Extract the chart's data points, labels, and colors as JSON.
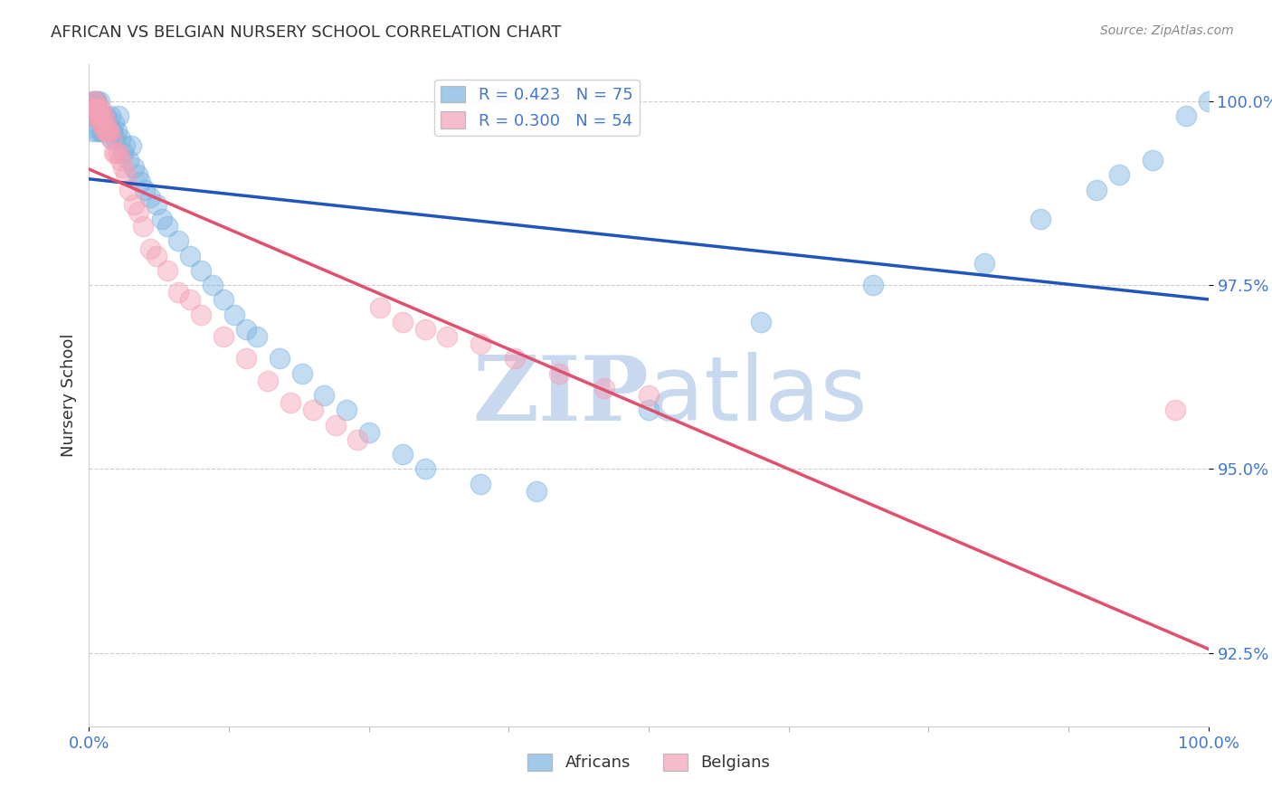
{
  "title": "AFRICAN VS BELGIAN NURSERY SCHOOL CORRELATION CHART",
  "source": "Source: ZipAtlas.com",
  "ylabel": "Nursery School",
  "xlim": [
    0.0,
    1.0
  ],
  "ylim": [
    0.915,
    1.005
  ],
  "yticks": [
    0.925,
    0.95,
    0.975,
    1.0
  ],
  "ytick_labels": [
    "92.5%",
    "95.0%",
    "97.5%",
    "100.0%"
  ],
  "xtick_labels": [
    "0.0%",
    "100.0%"
  ],
  "african_color": "#7ab3e0",
  "belgian_color": "#f4a0b5",
  "african_line_color": "#2255bb",
  "belgian_line_color": "#e05070",
  "R_african": 0.423,
  "N_african": 75,
  "R_belgian": 0.3,
  "N_belgian": 54,
  "african_x": [
    0.002,
    0.003,
    0.004,
    0.004,
    0.005,
    0.005,
    0.006,
    0.006,
    0.007,
    0.007,
    0.008,
    0.008,
    0.009,
    0.009,
    0.01,
    0.01,
    0.011,
    0.011,
    0.012,
    0.012,
    0.013,
    0.013,
    0.014,
    0.015,
    0.015,
    0.016,
    0.017,
    0.018,
    0.019,
    0.02,
    0.021,
    0.022,
    0.023,
    0.025,
    0.026,
    0.028,
    0.03,
    0.032,
    0.035,
    0.038,
    0.04,
    0.043,
    0.046,
    0.05,
    0.055,
    0.06,
    0.065,
    0.07,
    0.08,
    0.09,
    0.1,
    0.11,
    0.12,
    0.13,
    0.14,
    0.15,
    0.17,
    0.19,
    0.21,
    0.23,
    0.25,
    0.28,
    0.3,
    0.35,
    0.4,
    0.5,
    0.6,
    0.7,
    0.8,
    0.85,
    0.9,
    0.92,
    0.95,
    0.98,
    1.0
  ],
  "african_y": [
    0.998,
    1.0,
    0.998,
    0.996,
    1.0,
    0.998,
    1.0,
    0.998,
    0.998,
    1.0,
    0.998,
    0.996,
    0.998,
    1.0,
    0.998,
    0.996,
    0.998,
    0.998,
    0.996,
    0.998,
    0.998,
    0.996,
    0.998,
    0.997,
    0.998,
    0.996,
    0.997,
    0.996,
    0.998,
    0.995,
    0.996,
    0.997,
    0.995,
    0.996,
    0.998,
    0.995,
    0.993,
    0.994,
    0.992,
    0.994,
    0.991,
    0.99,
    0.989,
    0.988,
    0.987,
    0.986,
    0.984,
    0.983,
    0.981,
    0.979,
    0.977,
    0.975,
    0.973,
    0.971,
    0.969,
    0.968,
    0.965,
    0.963,
    0.96,
    0.958,
    0.955,
    0.952,
    0.95,
    0.948,
    0.947,
    0.958,
    0.97,
    0.975,
    0.978,
    0.984,
    0.988,
    0.99,
    0.992,
    0.998,
    1.0
  ],
  "belgian_x": [
    0.003,
    0.004,
    0.005,
    0.005,
    0.006,
    0.006,
    0.007,
    0.008,
    0.008,
    0.009,
    0.01,
    0.01,
    0.011,
    0.012,
    0.013,
    0.014,
    0.015,
    0.016,
    0.017,
    0.018,
    0.02,
    0.022,
    0.024,
    0.026,
    0.028,
    0.03,
    0.033,
    0.036,
    0.04,
    0.044,
    0.048,
    0.055,
    0.06,
    0.07,
    0.08,
    0.09,
    0.1,
    0.12,
    0.14,
    0.16,
    0.18,
    0.2,
    0.22,
    0.24,
    0.26,
    0.28,
    0.3,
    0.32,
    0.35,
    0.38,
    0.42,
    0.46,
    0.5,
    0.97
  ],
  "belgian_y": [
    0.999,
    1.0,
    0.999,
    0.998,
    1.0,
    0.999,
    0.999,
    0.998,
    0.999,
    0.998,
    0.999,
    0.997,
    0.998,
    0.997,
    0.998,
    0.996,
    0.997,
    0.996,
    0.996,
    0.996,
    0.995,
    0.993,
    0.993,
    0.993,
    0.992,
    0.991,
    0.99,
    0.988,
    0.986,
    0.985,
    0.983,
    0.98,
    0.979,
    0.977,
    0.974,
    0.973,
    0.971,
    0.968,
    0.965,
    0.962,
    0.959,
    0.958,
    0.956,
    0.954,
    0.972,
    0.97,
    0.969,
    0.968,
    0.967,
    0.965,
    0.963,
    0.961,
    0.96,
    0.958
  ],
  "background_color": "#ffffff",
  "grid_color": "#cccccc",
  "title_color": "#333333",
  "right_label_color": "#4477cc",
  "watermark_zip": "ZIP",
  "watermark_atlas": "atlas",
  "watermark_color_zip": "#c8d8ee",
  "watermark_color_atlas": "#c8d8ee"
}
